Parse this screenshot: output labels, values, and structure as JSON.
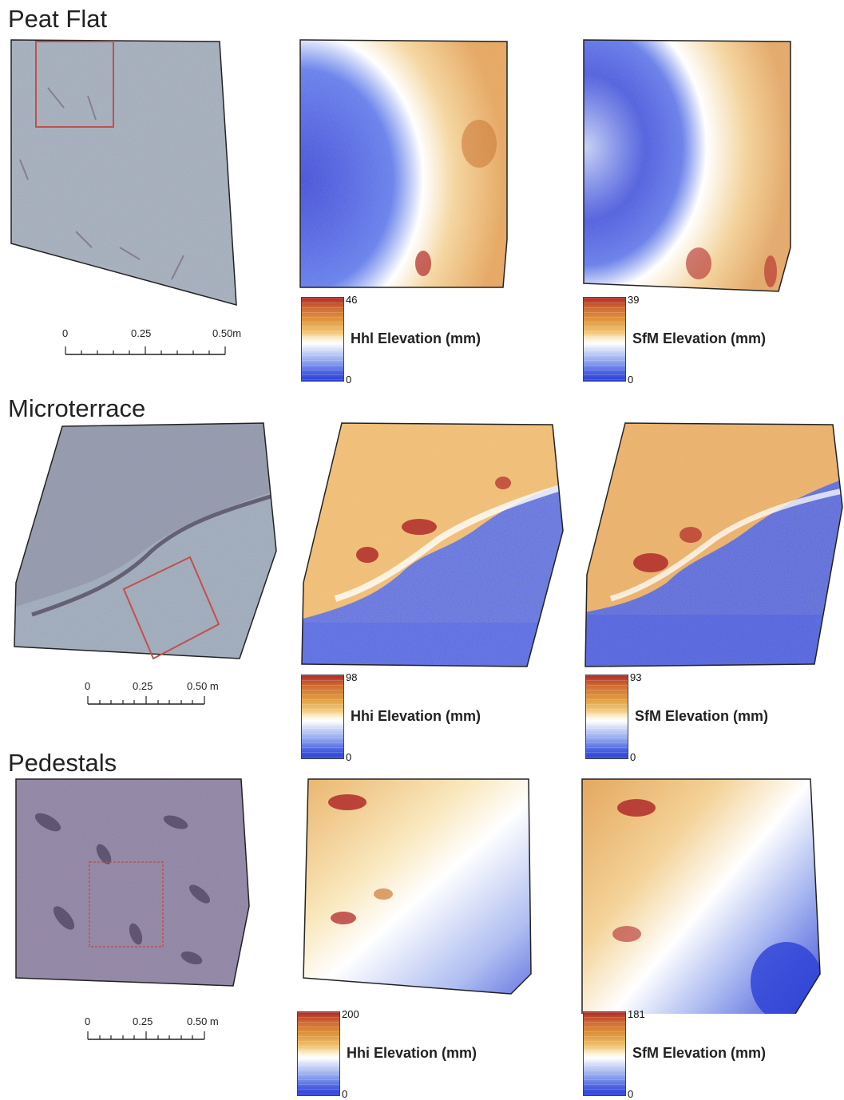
{
  "sections": [
    {
      "title": "Peat Flat",
      "hhi": {
        "max": "46",
        "min": "0",
        "label": "Hhl Elevation (mm)"
      },
      "sfm": {
        "max": "39",
        "min": "0",
        "label": "SfM Elevation (mm)"
      },
      "scale": {
        "labels": [
          "0",
          "0.25",
          "0.50m"
        ]
      }
    },
    {
      "title": "Microterrace",
      "hhi": {
        "max": "98",
        "min": "0",
        "label": "Hhi Elevation (mm)"
      },
      "sfm": {
        "max": "93",
        "min": "0",
        "label": "SfM Elevation (mm)"
      },
      "scale": {
        "labels": [
          "0",
          "0.25",
          "0.50 m"
        ]
      }
    },
    {
      "title": "Pedestals",
      "hhi": {
        "max": "200",
        "min": "0",
        "label": "Hhi Elevation (mm)"
      },
      "sfm": {
        "max": "181",
        "min": "0",
        "label": "SfM Elevation (mm)"
      },
      "scale": {
        "labels": [
          "0",
          "0.25",
          "0.50 m"
        ]
      }
    }
  ],
  "colors": {
    "photo_gray": "#a9b4c4",
    "photo_purple": "#9a8fae",
    "high": "#b02a2a",
    "mid_high": "#e09a3e",
    "neutral": "#ffffff",
    "low": "#2b3ed6",
    "inset_box": "#c0504d"
  }
}
